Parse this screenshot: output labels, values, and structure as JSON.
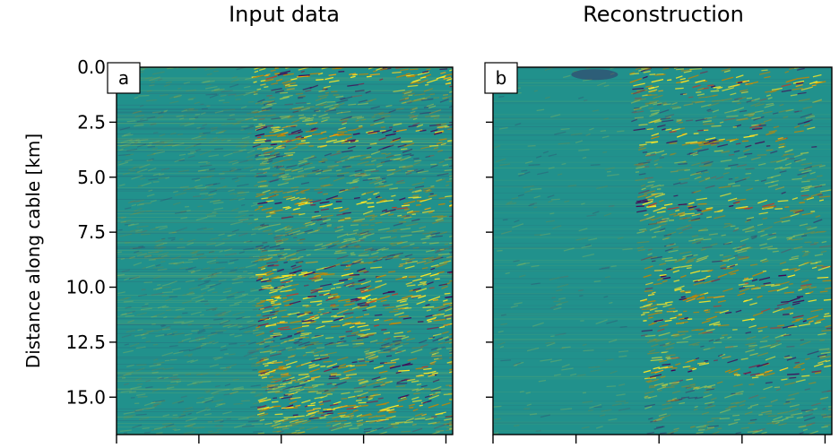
{
  "chart_data": [
    {
      "type": "heatmap",
      "panel_label": "a",
      "title": "Input data",
      "ylabel": "Distance along cable [km]",
      "yticks": [
        "0.0",
        "2.5",
        "5.0",
        "7.5",
        "10.0",
        "12.5",
        "15.0"
      ],
      "ytick_values": [
        0.0,
        2.5,
        5.0,
        7.5,
        10.0,
        12.5,
        15.0
      ],
      "ylim": [
        16.7,
        0.0
      ],
      "colormap": "viridis",
      "colors": {
        "background": "#21918c",
        "positive": "#fde725",
        "negative": "#440154"
      },
      "signal": {
        "onset_fraction_top": 0.4,
        "onset_fraction_bottom": 0.42,
        "strong_bands_km": [
          0.5,
          3.2,
          6.3,
          9.5,
          10.5,
          11.7,
          13.8,
          15.5
        ]
      }
    },
    {
      "type": "heatmap",
      "panel_label": "b",
      "title": "Reconstruction",
      "ylabel": "",
      "yticks": [],
      "ytick_values": [
        0.0,
        2.5,
        5.0,
        7.5,
        10.0,
        12.5,
        15.0
      ],
      "ylim": [
        16.7,
        0.0
      ],
      "colormap": "viridis",
      "colors": {
        "background": "#21918c",
        "positive": "#fde725",
        "negative": "#440154"
      },
      "signal": {
        "onset_fraction_top": 0.4,
        "onset_fraction_bottom": 0.45,
        "strong_bands_km": [
          0.7,
          3.2,
          6.3,
          9.5,
          10.5,
          11.5,
          13.8
        ]
      }
    }
  ]
}
